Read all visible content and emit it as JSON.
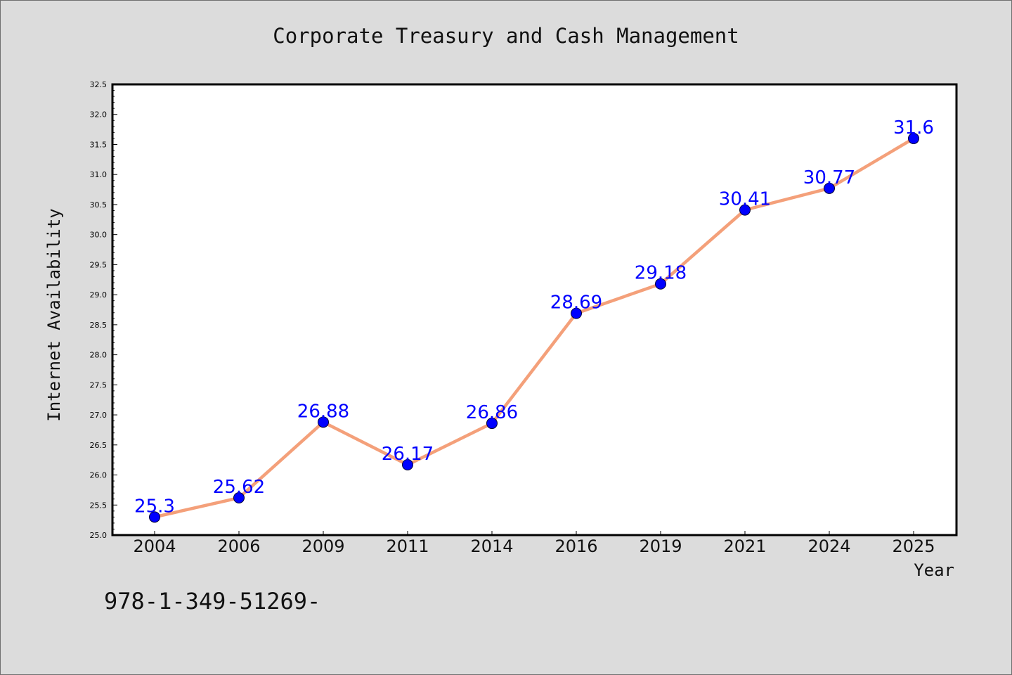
{
  "chart_data": {
    "type": "line",
    "title": "Corporate Treasury and Cash Management",
    "xlabel": "Year",
    "ylabel": "Internet Availability",
    "categories": [
      "2004",
      "2006",
      "2009",
      "2011",
      "2014",
      "2016",
      "2019",
      "2021",
      "2024",
      "2025"
    ],
    "series": [
      {
        "values": [
          25.3,
          25.62,
          26.88,
          26.17,
          26.86,
          28.69,
          29.18,
          30.41,
          30.77,
          31.6
        ]
      }
    ],
    "data_labels": [
      "25.3",
      "25.62",
      "26.88",
      "26.17",
      "26.86",
      "28.69",
      "29.18",
      "30.41",
      "30.77",
      "31.6"
    ],
    "ylim": [
      25.0,
      32.5
    ],
    "yticks": [
      "25.0",
      "25.5",
      "26.0",
      "26.5",
      "27.0",
      "27.5",
      "28.0",
      "28.5",
      "29.0",
      "29.5",
      "30.0",
      "30.5",
      "31.0",
      "31.5",
      "32.0",
      "32.5"
    ],
    "grid": false,
    "line_color": "#f4a07a",
    "marker_color": "#0000ff",
    "label_color": "#0000ff",
    "plot_background": "#ffffff",
    "figure_background": "#dcdcdc"
  },
  "footer": {
    "text": "978-1-349-51269-"
  }
}
